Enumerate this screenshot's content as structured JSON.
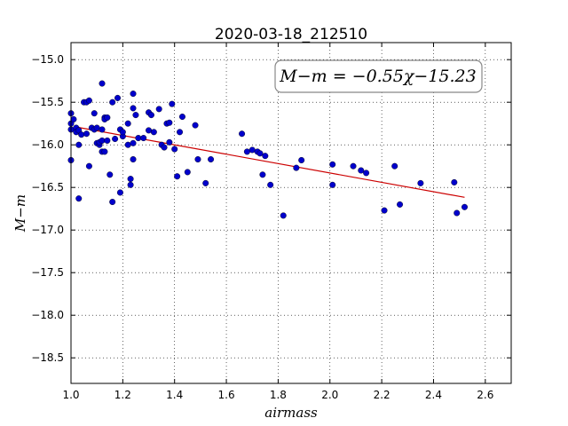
{
  "chart_data": {
    "type": "scatter",
    "title": "2020-03-18_212510",
    "xlabel": "airmass",
    "ylabel": "M−m",
    "xlim": [
      1.0,
      2.7
    ],
    "ylim": [
      -18.8,
      -14.8
    ],
    "y_inverted": true,
    "x_ticks": [
      1.0,
      1.2,
      1.4,
      1.6,
      1.8,
      2.0,
      2.2,
      2.4,
      2.6
    ],
    "x_tick_labels": [
      "1.0",
      "1.2",
      "1.4",
      "1.6",
      "1.8",
      "2.0",
      "2.2",
      "2.4",
      "2.6"
    ],
    "y_ticks": [
      -15.0,
      -15.5,
      -16.0,
      -16.5,
      -17.0,
      -17.5,
      -18.0,
      -18.5
    ],
    "y_tick_labels": [
      "−15.0",
      "−15.5",
      "−16.0",
      "−16.5",
      "−17.0",
      "−17.5",
      "−18.0",
      "−18.5"
    ],
    "grid": true,
    "annotation": "M−m = −0.55χ−15.23",
    "annotation_position": "top-right",
    "fit_line": {
      "slope": -0.55,
      "intercept": -15.23,
      "x_range": [
        1.02,
        2.52
      ],
      "color": "#cc0000"
    },
    "points_color": "#0000cc",
    "points": [
      [
        1.0,
        -15.63
      ],
      [
        1.0,
        -15.75
      ],
      [
        1.0,
        -15.82
      ],
      [
        1.0,
        -16.18
      ],
      [
        1.01,
        -15.7
      ],
      [
        1.02,
        -15.8
      ],
      [
        1.02,
        -15.85
      ],
      [
        1.03,
        -15.83
      ],
      [
        1.03,
        -16.0
      ],
      [
        1.03,
        -16.63
      ],
      [
        1.04,
        -15.88
      ],
      [
        1.05,
        -15.5
      ],
      [
        1.06,
        -15.5
      ],
      [
        1.06,
        -15.87
      ],
      [
        1.07,
        -15.48
      ],
      [
        1.07,
        -16.25
      ],
      [
        1.08,
        -15.8
      ],
      [
        1.09,
        -15.82
      ],
      [
        1.09,
        -15.63
      ],
      [
        1.1,
        -15.8
      ],
      [
        1.1,
        -15.98
      ],
      [
        1.11,
        -16.0
      ],
      [
        1.11,
        -15.97
      ],
      [
        1.12,
        -15.28
      ],
      [
        1.12,
        -15.82
      ],
      [
        1.12,
        -15.95
      ],
      [
        1.12,
        -16.08
      ],
      [
        1.13,
        -15.68
      ],
      [
        1.13,
        -15.7
      ],
      [
        1.13,
        -16.08
      ],
      [
        1.14,
        -15.68
      ],
      [
        1.14,
        -15.95
      ],
      [
        1.15,
        -16.35
      ],
      [
        1.16,
        -15.5
      ],
      [
        1.16,
        -16.67
      ],
      [
        1.17,
        -15.93
      ],
      [
        1.18,
        -15.45
      ],
      [
        1.19,
        -16.56
      ],
      [
        1.19,
        -15.82
      ],
      [
        1.2,
        -15.9
      ],
      [
        1.2,
        -15.85
      ],
      [
        1.22,
        -16.0
      ],
      [
        1.22,
        -15.75
      ],
      [
        1.23,
        -16.47
      ],
      [
        1.23,
        -16.4
      ],
      [
        1.24,
        -15.57
      ],
      [
        1.24,
        -15.4
      ],
      [
        1.24,
        -15.98
      ],
      [
        1.24,
        -16.17
      ],
      [
        1.25,
        -15.65
      ],
      [
        1.26,
        -15.92
      ],
      [
        1.28,
        -15.92
      ],
      [
        1.3,
        -15.62
      ],
      [
        1.3,
        -15.83
      ],
      [
        1.31,
        -15.65
      ],
      [
        1.32,
        -15.85
      ],
      [
        1.34,
        -15.58
      ],
      [
        1.35,
        -16.0
      ],
      [
        1.36,
        -16.03
      ],
      [
        1.37,
        -15.75
      ],
      [
        1.38,
        -15.97
      ],
      [
        1.38,
        -15.74
      ],
      [
        1.39,
        -15.52
      ],
      [
        1.4,
        -16.05
      ],
      [
        1.41,
        -16.37
      ],
      [
        1.42,
        -15.85
      ],
      [
        1.43,
        -15.67
      ],
      [
        1.45,
        -16.32
      ],
      [
        1.48,
        -15.77
      ],
      [
        1.49,
        -16.17
      ],
      [
        1.52,
        -16.45
      ],
      [
        1.54,
        -16.17
      ],
      [
        1.66,
        -15.87
      ],
      [
        1.68,
        -16.08
      ],
      [
        1.7,
        -16.06
      ],
      [
        1.72,
        -16.08
      ],
      [
        1.73,
        -16.1
      ],
      [
        1.74,
        -16.35
      ],
      [
        1.75,
        -16.13
      ],
      [
        1.77,
        -16.47
      ],
      [
        1.82,
        -16.83
      ],
      [
        1.87,
        -16.27
      ],
      [
        1.89,
        -16.18
      ],
      [
        2.01,
        -16.23
      ],
      [
        2.01,
        -16.47
      ],
      [
        2.09,
        -16.25
      ],
      [
        2.12,
        -16.3
      ],
      [
        2.14,
        -16.33
      ],
      [
        2.21,
        -16.77
      ],
      [
        2.25,
        -16.25
      ],
      [
        2.27,
        -16.7
      ],
      [
        2.35,
        -16.45
      ],
      [
        2.48,
        -16.44
      ],
      [
        2.49,
        -16.8
      ],
      [
        2.52,
        -16.73
      ]
    ]
  }
}
